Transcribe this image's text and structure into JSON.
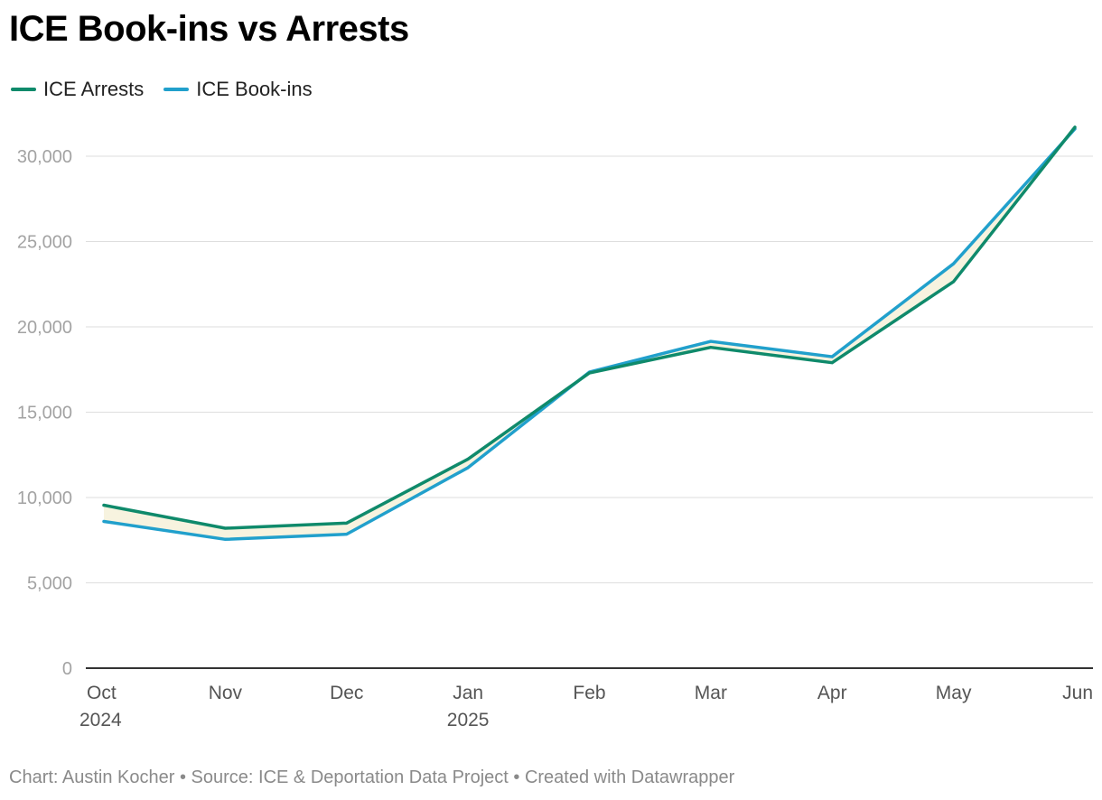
{
  "title": "ICE Book-ins vs Arrests",
  "footer": "Chart: Austin Kocher • Source: ICE & Deportation Data Project • Created with Datawrapper",
  "chart_data": {
    "type": "line",
    "title": "ICE Book-ins vs Arrests",
    "xlabel": "",
    "ylabel": "",
    "categories": [
      "Oct 2024",
      "Nov",
      "Dec",
      "Jan 2025",
      "Feb",
      "Mar",
      "Apr",
      "May",
      "Jun"
    ],
    "tick_labels": [
      [
        "Oct",
        "2024"
      ],
      [
        "Nov"
      ],
      [
        "Dec"
      ],
      [
        "Jan",
        "2025"
      ],
      [
        "Feb"
      ],
      [
        "Mar"
      ],
      [
        "Apr"
      ],
      [
        "May"
      ],
      [
        "Jun"
      ]
    ],
    "series": [
      {
        "name": "ICE Arrests",
        "color": "#0f8a6b",
        "values": [
          9550,
          8200,
          8500,
          12250,
          17300,
          18800,
          17900,
          22650,
          31700
        ]
      },
      {
        "name": "ICE Book-ins",
        "color": "#21a0cc",
        "values": [
          8600,
          7550,
          7850,
          11750,
          17350,
          19150,
          18250,
          23700,
          31600
        ]
      }
    ],
    "area_fill_color": "#f7f3df",
    "ylim": [
      0,
      31700
    ],
    "yticks": [
      0,
      5000,
      10000,
      15000,
      20000,
      25000,
      30000
    ],
    "ytick_labels": [
      "0",
      "5,000",
      "10,000",
      "15,000",
      "20,000",
      "25,000",
      "30,000"
    ],
    "grid": true,
    "legend_position": "top-left"
  }
}
